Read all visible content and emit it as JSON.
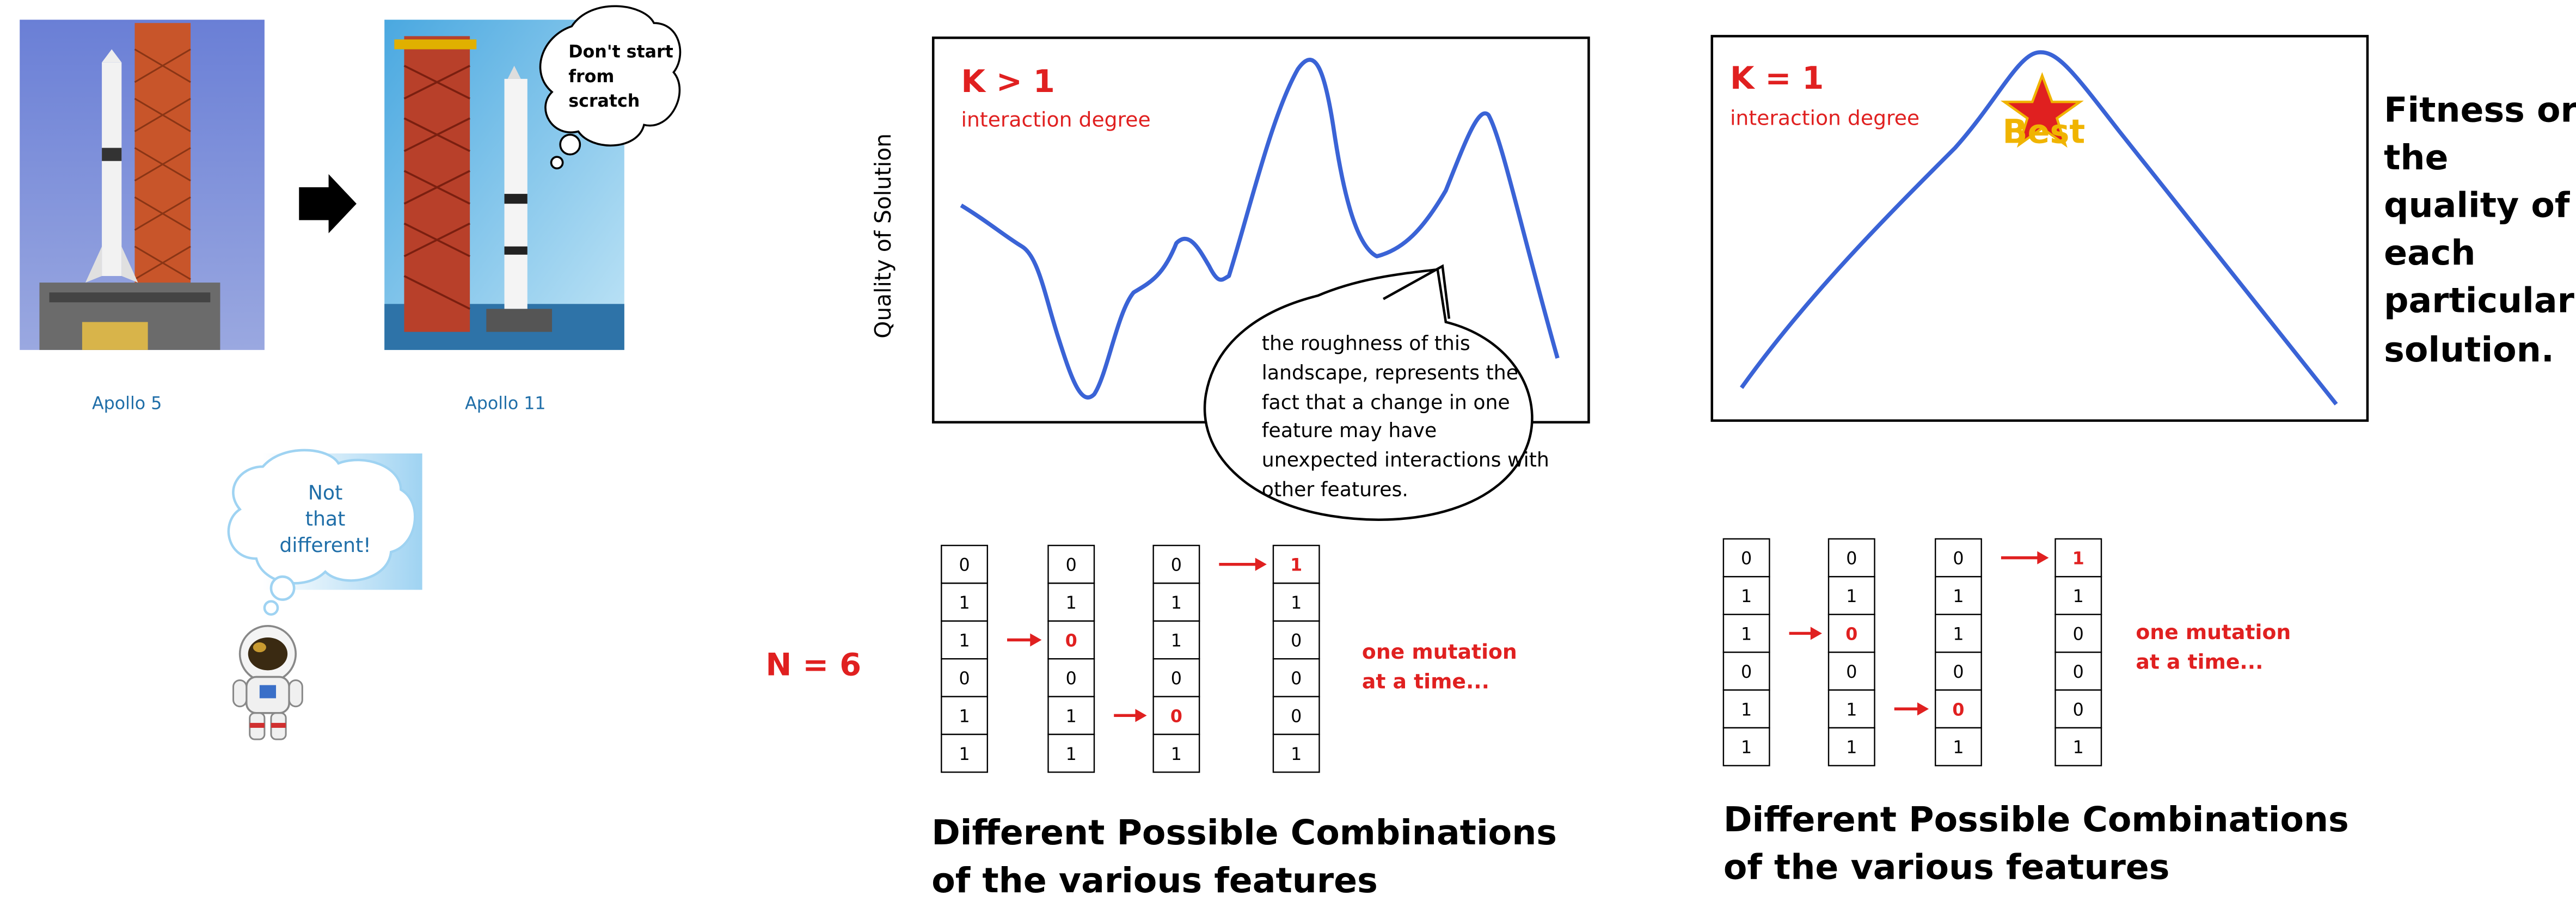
{
  "photos": {
    "apollo5_caption": "Apollo 5",
    "apollo11_caption": "Apollo 11",
    "speech_bubble": [
      "Don't start",
      "from",
      "scratch"
    ],
    "thought_bubble": [
      "Not",
      "that",
      "different!"
    ]
  },
  "rugged": {
    "k_label": "K > 1",
    "k_sublabel": "interaction degree",
    "ylabel": "Quality of Solution",
    "callout": [
      "the roughness of this",
      "landscape, represents the",
      "fact that a change in one",
      "feature may have",
      "unexpected interactions with",
      "other features."
    ],
    "n_label": "N = 6",
    "mutation_note": [
      "one mutation",
      "at a time..."
    ],
    "caption": [
      "Different Possible Combinations",
      "of the various features"
    ],
    "columns": [
      [
        "0",
        "1",
        "1",
        "0",
        "1",
        "1"
      ],
      [
        "0",
        "1",
        "0",
        "0",
        "1",
        "1"
      ],
      [
        "0",
        "1",
        "1",
        "0",
        "0",
        "1"
      ],
      [
        "1",
        "1",
        "0",
        "0",
        "0",
        "1"
      ]
    ],
    "highlight": [
      [
        1,
        2
      ],
      [
        2,
        4
      ],
      [
        3,
        0
      ]
    ]
  },
  "smooth": {
    "k_label": "K = 1",
    "k_sublabel": "interaction degree",
    "best_label": "Best",
    "side_text": [
      "Fitness or",
      "the",
      "quality of",
      "each",
      "particular",
      "solution."
    ],
    "mutation_note": [
      "one mutation",
      "at a time..."
    ],
    "caption": [
      "Different Possible Combinations",
      "of the various features"
    ],
    "columns": [
      [
        "0",
        "1",
        "1",
        "0",
        "1",
        "1"
      ],
      [
        "0",
        "1",
        "0",
        "0",
        "1",
        "1"
      ],
      [
        "0",
        "1",
        "1",
        "0",
        "0",
        "1"
      ],
      [
        "1",
        "1",
        "0",
        "0",
        "0",
        "1"
      ]
    ],
    "highlight": [
      [
        1,
        2
      ],
      [
        2,
        4
      ],
      [
        3,
        0
      ]
    ]
  },
  "colors": {
    "accent": "#e02020",
    "curve": "#3a63d6",
    "caption_blue": "#1f6ea8",
    "best": "#f0b400"
  }
}
